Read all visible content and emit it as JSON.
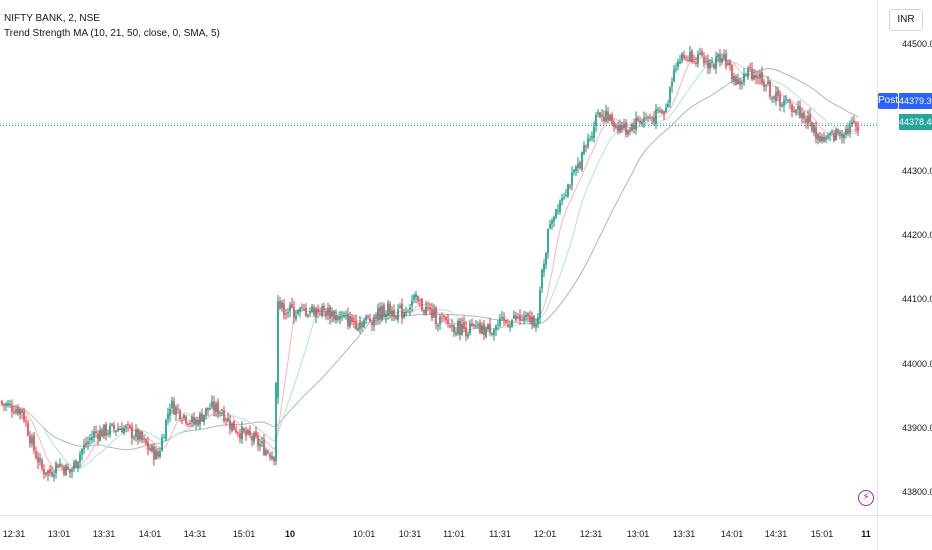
{
  "legend": {
    "symbol": "NIFTY BANK, 2, NSE",
    "indicator": "Trend Strength MA (10, 21, 50, close, 0, SMA, 5)"
  },
  "price_scale": {
    "currency": "INR",
    "ticks": [
      "44500.00",
      "44300.00",
      "44200.00",
      "44100.00",
      "44000.00",
      "43900.00",
      "43800.00"
    ],
    "post_label": "Post",
    "post_price": "44379.30",
    "last_price": "44378.40"
  },
  "time_scale": {
    "ticks": [
      "12:31",
      "13:01",
      "13:31",
      "14:01",
      "14:31",
      "15:01",
      "10",
      "10:01",
      "10:31",
      "11:01",
      "11:31",
      "12:01",
      "12:31",
      "13:01",
      "13:31",
      "14:01",
      "14:31",
      "15:01",
      "11"
    ]
  },
  "colors": {
    "up": "#089981",
    "down": "#f23645",
    "ma_slow": "#b2b5be",
    "ma_mid": "#aee5e0",
    "ma_fast": "#f7b8b8",
    "price_line": "#26a69a",
    "post_line": "#2962ff"
  },
  "chart_data": {
    "type": "candlestick",
    "symbol": "NIFTY BANK",
    "interval": "2",
    "exchange": "NSE",
    "ylim": [
      43780,
      44560
    ],
    "close_path": [
      [
        0,
        43950
      ],
      [
        6,
        43945
      ],
      [
        10,
        43940
      ],
      [
        16,
        43880
      ],
      [
        20,
        43850
      ],
      [
        24,
        43845
      ],
      [
        28,
        43860
      ],
      [
        32,
        43850
      ],
      [
        34,
        43845
      ],
      [
        40,
        43880
      ],
      [
        46,
        43905
      ],
      [
        54,
        43910
      ],
      [
        60,
        43915
      ],
      [
        68,
        43900
      ],
      [
        74,
        43880
      ],
      [
        78,
        43870
      ],
      [
        84,
        43950
      ],
      [
        90,
        43935
      ],
      [
        96,
        43920
      ],
      [
        104,
        43945
      ],
      [
        110,
        43940
      ],
      [
        114,
        43920
      ],
      [
        120,
        43905
      ],
      [
        126,
        43895
      ],
      [
        132,
        43880
      ],
      [
        136,
        43872
      ],
      [
        138,
        44100
      ],
      [
        142,
        44095
      ],
      [
        148,
        44090
      ],
      [
        156,
        44095
      ],
      [
        164,
        44090
      ],
      [
        170,
        44080
      ],
      [
        178,
        44075
      ],
      [
        184,
        44080
      ],
      [
        192,
        44095
      ],
      [
        200,
        44090
      ],
      [
        206,
        44110
      ],
      [
        212,
        44095
      ],
      [
        218,
        44080
      ],
      [
        224,
        44070
      ],
      [
        232,
        44065
      ],
      [
        240,
        44062
      ],
      [
        248,
        44070
      ],
      [
        256,
        44080
      ],
      [
        262,
        44078
      ],
      [
        268,
        44080
      ],
      [
        270,
        44150
      ],
      [
        274,
        44230
      ],
      [
        280,
        44270
      ],
      [
        286,
        44300
      ],
      [
        290,
        44330
      ],
      [
        294,
        44360
      ],
      [
        298,
        44400
      ],
      [
        302,
        44390
      ],
      [
        306,
        44380
      ],
      [
        312,
        44370
      ],
      [
        318,
        44385
      ],
      [
        326,
        44390
      ],
      [
        332,
        44400
      ],
      [
        336,
        44470
      ],
      [
        340,
        44480
      ],
      [
        346,
        44485
      ],
      [
        350,
        44475
      ],
      [
        356,
        44470
      ],
      [
        360,
        44490
      ],
      [
        364,
        44460
      ],
      [
        368,
        44440
      ],
      [
        374,
        44460
      ],
      [
        380,
        44450
      ],
      [
        386,
        44420
      ],
      [
        392,
        44410
      ],
      [
        398,
        44400
      ],
      [
        404,
        44380
      ],
      [
        408,
        44360
      ],
      [
        412,
        44355
      ],
      [
        418,
        44365
      ],
      [
        424,
        44375
      ],
      [
        428,
        44378
      ]
    ],
    "moving_averages": [
      {
        "period": 50,
        "color_key": "ma_slow"
      },
      {
        "period": 21,
        "color_key": "ma_mid"
      },
      {
        "period": 10,
        "color_key": "ma_fast"
      }
    ],
    "post_price": 44379.3,
    "last_price": 44378.4
  }
}
